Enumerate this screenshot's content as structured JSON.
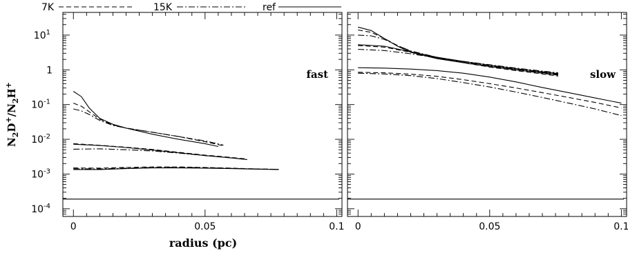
{
  "chart_data": {
    "type": "line",
    "legend": {
      "placement": "top-left",
      "entries": [
        {
          "label": "7K",
          "style": "dashed"
        },
        {
          "label": "15K",
          "style": "dashdot"
        },
        {
          "label": "ref",
          "style": "solid"
        }
      ]
    },
    "xlabel": "radius (pc)",
    "ylabel": "N2D+/N2H+",
    "xlim": [
      -0.004,
      0.102
    ],
    "ylim": [
      6e-05,
      45
    ],
    "yscale": "log",
    "x_ticks": [
      {
        "v": 0,
        "label": "0"
      },
      {
        "v": 0.05,
        "label": "0.05"
      },
      {
        "v": 0.1,
        "label": "0.1"
      }
    ],
    "y_ticks": [
      {
        "v": 10,
        "label": "10",
        "exp": "1"
      },
      {
        "v": 1,
        "label": "1",
        "exp": ""
      },
      {
        "v": 0.1,
        "label": "10",
        "exp": "-1"
      },
      {
        "v": 0.01,
        "label": "10",
        "exp": "-2"
      },
      {
        "v": 0.001,
        "label": "10",
        "exp": "-3"
      },
      {
        "v": 0.0001,
        "label": "10",
        "exp": "-4"
      }
    ],
    "panels": [
      {
        "annotation": "fast",
        "series": [
          {
            "style": "solid",
            "points": [
              [
                0,
                0.24
              ],
              [
                0.003,
                0.17
              ],
              [
                0.006,
                0.08
              ],
              [
                0.01,
                0.04
              ],
              [
                0.015,
                0.027
              ],
              [
                0.02,
                0.021
              ],
              [
                0.03,
                0.014
              ],
              [
                0.04,
                0.01
              ],
              [
                0.05,
                0.0075
              ],
              [
                0.055,
                0.0062
              ]
            ]
          },
          {
            "style": "dashed",
            "points": [
              [
                0,
                0.11
              ],
              [
                0.003,
                0.09
              ],
              [
                0.006,
                0.062
              ],
              [
                0.01,
                0.038
              ],
              [
                0.015,
                0.026
              ],
              [
                0.02,
                0.021
              ],
              [
                0.03,
                0.016
              ],
              [
                0.04,
                0.012
              ],
              [
                0.05,
                0.0085
              ],
              [
                0.057,
                0.0065
              ]
            ]
          },
          {
            "style": "dashdot",
            "points": [
              [
                0,
                0.075
              ],
              [
                0.003,
                0.066
              ],
              [
                0.006,
                0.052
              ],
              [
                0.01,
                0.035
              ],
              [
                0.015,
                0.025
              ],
              [
                0.02,
                0.021
              ],
              [
                0.03,
                0.016
              ],
              [
                0.04,
                0.012
              ],
              [
                0.05,
                0.009
              ],
              [
                0.057,
                0.0068
              ]
            ]
          },
          {
            "style": "solid",
            "points": [
              [
                0,
                0.0072
              ],
              [
                0.01,
                0.0066
              ],
              [
                0.02,
                0.0058
              ],
              [
                0.03,
                0.0049
              ],
              [
                0.04,
                0.0041
              ],
              [
                0.05,
                0.0034
              ],
              [
                0.06,
                0.0029
              ],
              [
                0.066,
                0.0026
              ]
            ]
          },
          {
            "style": "dashed",
            "points": [
              [
                0,
                0.0075
              ],
              [
                0.01,
                0.0067
              ],
              [
                0.02,
                0.0059
              ],
              [
                0.03,
                0.0051
              ],
              [
                0.04,
                0.0042
              ],
              [
                0.05,
                0.0035
              ],
              [
                0.06,
                0.003
              ],
              [
                0.066,
                0.0027
              ]
            ]
          },
          {
            "style": "dashdot",
            "points": [
              [
                0,
                0.0052
              ],
              [
                0.01,
                0.0053
              ],
              [
                0.02,
                0.005
              ],
              [
                0.03,
                0.0046
              ],
              [
                0.04,
                0.004
              ],
              [
                0.05,
                0.0034
              ],
              [
                0.06,
                0.0029
              ],
              [
                0.066,
                0.0026
              ]
            ]
          },
          {
            "style": "solid",
            "points": [
              [
                0,
                0.00135
              ],
              [
                0.01,
                0.00135
              ],
              [
                0.02,
                0.00143
              ],
              [
                0.03,
                0.0015
              ],
              [
                0.04,
                0.0015
              ],
              [
                0.05,
                0.00148
              ],
              [
                0.06,
                0.00143
              ],
              [
                0.07,
                0.00138
              ],
              [
                0.078,
                0.00135
              ]
            ]
          },
          {
            "style": "dashed",
            "points": [
              [
                0,
                0.0015
              ],
              [
                0.01,
                0.00148
              ],
              [
                0.02,
                0.00155
              ],
              [
                0.03,
                0.0016
              ],
              [
                0.04,
                0.0016
              ],
              [
                0.05,
                0.00155
              ],
              [
                0.06,
                0.00148
              ],
              [
                0.07,
                0.0014
              ],
              [
                0.078,
                0.00137
              ]
            ]
          },
          {
            "style": "dashdot",
            "points": [
              [
                0,
                0.00142
              ],
              [
                0.01,
                0.0014
              ],
              [
                0.02,
                0.00148
              ],
              [
                0.03,
                0.00155
              ],
              [
                0.04,
                0.00156
              ],
              [
                0.05,
                0.00152
              ],
              [
                0.06,
                0.00146
              ],
              [
                0.07,
                0.0014
              ],
              [
                0.078,
                0.00136
              ]
            ]
          },
          {
            "style": "solid",
            "points": [
              [
                -0.004,
                0.00019
              ],
              [
                0.101,
                0.00019
              ]
            ]
          }
        ]
      },
      {
        "annotation": "slow",
        "series": [
          {
            "style": "solid",
            "points": [
              [
                0,
                17
              ],
              [
                0.005,
                13.5
              ],
              [
                0.01,
                8
              ],
              [
                0.015,
                4.8
              ],
              [
                0.02,
                3.2
              ],
              [
                0.03,
                2.1
              ],
              [
                0.04,
                1.6
              ],
              [
                0.05,
                1.25
              ],
              [
                0.06,
                1.0
              ],
              [
                0.07,
                0.82
              ],
              [
                0.076,
                0.72
              ]
            ]
          },
          {
            "style": "dashed",
            "points": [
              [
                0,
                14
              ],
              [
                0.005,
                12
              ],
              [
                0.01,
                8
              ],
              [
                0.015,
                5
              ],
              [
                0.02,
                3.4
              ],
              [
                0.03,
                2.2
              ],
              [
                0.04,
                1.6
              ],
              [
                0.05,
                1.2
              ],
              [
                0.06,
                0.95
              ],
              [
                0.07,
                0.76
              ],
              [
                0.076,
                0.66
              ]
            ]
          },
          {
            "style": "dashdot",
            "points": [
              [
                0,
                10
              ],
              [
                0.005,
                9.5
              ],
              [
                0.01,
                7.5
              ],
              [
                0.015,
                5.0
              ],
              [
                0.02,
                3.5
              ],
              [
                0.03,
                2.3
              ],
              [
                0.04,
                1.7
              ],
              [
                0.05,
                1.3
              ],
              [
                0.06,
                1.05
              ],
              [
                0.07,
                0.85
              ],
              [
                0.076,
                0.75
              ]
            ]
          },
          {
            "style": "solid",
            "points": [
              [
                0,
                5.3
              ],
              [
                0.01,
                4.8
              ],
              [
                0.02,
                3.3
              ],
              [
                0.03,
                2.3
              ],
              [
                0.04,
                1.75
              ],
              [
                0.05,
                1.35
              ],
              [
                0.06,
                1.08
              ],
              [
                0.07,
                0.88
              ],
              [
                0.076,
                0.78
              ]
            ]
          },
          {
            "style": "dashed",
            "points": [
              [
                0,
                5.0
              ],
              [
                0.01,
                4.5
              ],
              [
                0.02,
                3.2
              ],
              [
                0.03,
                2.2
              ],
              [
                0.04,
                1.65
              ],
              [
                0.05,
                1.25
              ],
              [
                0.06,
                1.0
              ],
              [
                0.07,
                0.8
              ],
              [
                0.076,
                0.7
              ]
            ]
          },
          {
            "style": "dashdot",
            "points": [
              [
                0,
                3.9
              ],
              [
                0.01,
                3.6
              ],
              [
                0.02,
                2.9
              ],
              [
                0.03,
                2.2
              ],
              [
                0.04,
                1.75
              ],
              [
                0.05,
                1.4
              ],
              [
                0.06,
                1.12
              ],
              [
                0.07,
                0.92
              ],
              [
                0.076,
                0.82
              ]
            ]
          },
          {
            "style": "solid",
            "points": [
              [
                0,
                1.15
              ],
              [
                0.01,
                1.12
              ],
              [
                0.02,
                1.05
              ],
              [
                0.03,
                0.95
              ],
              [
                0.04,
                0.8
              ],
              [
                0.05,
                0.62
              ],
              [
                0.06,
                0.45
              ],
              [
                0.07,
                0.31
              ],
              [
                0.08,
                0.22
              ],
              [
                0.09,
                0.155
              ],
              [
                0.1,
                0.11
              ]
            ]
          },
          {
            "style": "dashed",
            "points": [
              [
                0,
                0.85
              ],
              [
                0.01,
                0.82
              ],
              [
                0.02,
                0.75
              ],
              [
                0.03,
                0.65
              ],
              [
                0.04,
                0.52
              ],
              [
                0.05,
                0.4
              ],
              [
                0.06,
                0.3
              ],
              [
                0.07,
                0.22
              ],
              [
                0.08,
                0.16
              ],
              [
                0.09,
                0.115
              ],
              [
                0.1,
                0.08
              ]
            ]
          },
          {
            "style": "dashdot",
            "points": [
              [
                0,
                0.8
              ],
              [
                0.01,
                0.76
              ],
              [
                0.02,
                0.68
              ],
              [
                0.03,
                0.56
              ],
              [
                0.04,
                0.43
              ],
              [
                0.05,
                0.32
              ],
              [
                0.06,
                0.23
              ],
              [
                0.07,
                0.16
              ],
              [
                0.08,
                0.11
              ],
              [
                0.09,
                0.075
              ],
              [
                0.1,
                0.048
              ]
            ]
          },
          {
            "style": "solid",
            "points": [
              [
                -0.004,
                0.00019
              ],
              [
                0.101,
                0.00019
              ]
            ]
          }
        ]
      }
    ]
  }
}
